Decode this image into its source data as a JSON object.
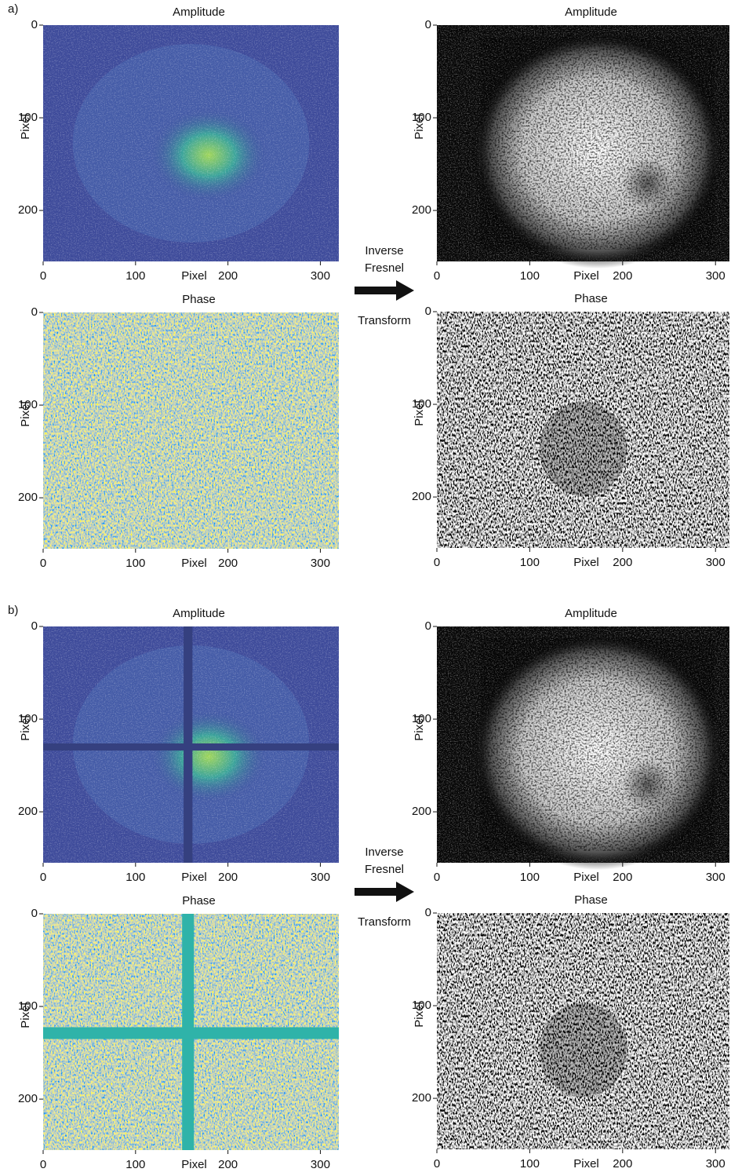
{
  "figures": [
    {
      "label": "a)",
      "arrow_text": [
        "Inverse",
        "Fresnel",
        "Transform"
      ],
      "panels": [
        {
          "title": "Amplitude",
          "colormap": "viridis-amplitude",
          "xlabel": "Pixel",
          "ylabel": "Pixel",
          "xlim": [
            0,
            320
          ],
          "ylim": [
            0,
            255
          ],
          "xticks": [
            0,
            100,
            200,
            300
          ],
          "yticks": [
            0,
            100,
            200
          ]
        },
        {
          "title": "Amplitude",
          "colormap": "gray-amplitude",
          "xlabel": "Pixel",
          "ylabel": "Pixel",
          "xlim": [
            0,
            315
          ],
          "ylim": [
            0,
            255
          ],
          "xticks": [
            0,
            100,
            200,
            300
          ],
          "yticks": [
            0,
            100,
            200
          ]
        },
        {
          "title": "Phase",
          "colormap": "viridis-phase",
          "xlabel": "Pixel",
          "ylabel": "Pixel",
          "xlim": [
            0,
            320
          ],
          "ylim": [
            0,
            255
          ],
          "xticks": [
            0,
            100,
            200,
            300
          ],
          "yticks": [
            0,
            100,
            200
          ]
        },
        {
          "title": "Phase",
          "colormap": "gray-phase",
          "xlabel": "Pixel",
          "ylabel": "Pixel",
          "xlim": [
            0,
            315
          ],
          "ylim": [
            0,
            255
          ],
          "xticks": [
            0,
            100,
            200,
            300
          ],
          "yticks": [
            0,
            100,
            200
          ]
        }
      ]
    },
    {
      "label": "b)",
      "arrow_text": [
        "Inverse",
        "Fresnel",
        "Transform"
      ],
      "panels": [
        {
          "title": "Amplitude",
          "colormap": "viridis-amplitude",
          "xlabel": "Pixel",
          "ylabel": "Pixel",
          "xlim": [
            0,
            320
          ],
          "ylim": [
            0,
            255
          ],
          "xticks": [
            0,
            100,
            200,
            300
          ],
          "yticks": [
            0,
            100,
            200
          ]
        },
        {
          "title": "Amplitude",
          "colormap": "gray-amplitude",
          "xlabel": "Pixel",
          "ylabel": "Pixel",
          "xlim": [
            0,
            315
          ],
          "ylim": [
            0,
            255
          ],
          "xticks": [
            0,
            100,
            200,
            300
          ],
          "yticks": [
            0,
            100,
            200
          ]
        },
        {
          "title": "Phase",
          "colormap": "viridis-phase",
          "xlabel": "Pixel",
          "ylabel": "Pixel",
          "xlim": [
            0,
            320
          ],
          "ylim": [
            0,
            255
          ],
          "xticks": [
            0,
            100,
            200,
            300
          ],
          "yticks": [
            0,
            100,
            200
          ]
        },
        {
          "title": "Phase",
          "colormap": "gray-phase",
          "xlabel": "Pixel",
          "ylabel": "Pixel",
          "xlim": [
            0,
            315
          ],
          "ylim": [
            0,
            255
          ],
          "xticks": [
            0,
            100,
            200,
            300
          ],
          "yticks": [
            0,
            100,
            200
          ]
        }
      ]
    }
  ]
}
